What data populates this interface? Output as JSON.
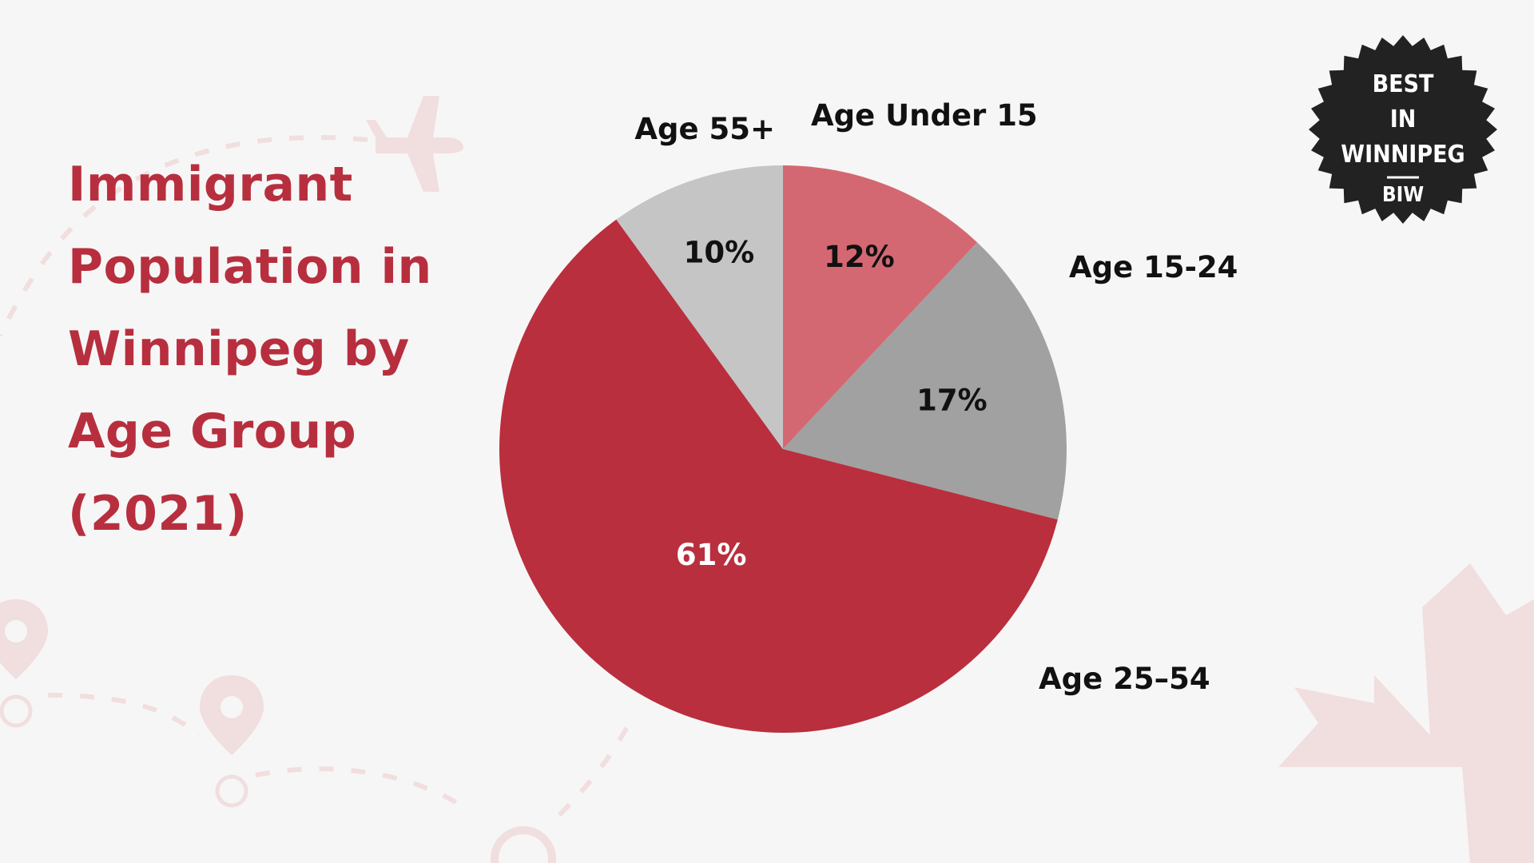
{
  "title_lines": [
    "Immigrant",
    "Population in",
    "Winnipeg by",
    "Age Group",
    "(2021)"
  ],
  "badge": {
    "line1": "BEST",
    "line2": "IN",
    "line3": "WINNIPEG",
    "line4": "BIW"
  },
  "colors": {
    "title": "#b72f3e",
    "background": "#f7f6f6",
    "decoration": "#f1dede",
    "badge": "#222222"
  },
  "chart_data": {
    "type": "pie",
    "title": "Immigrant Population in Winnipeg by Age Group (2021)",
    "start_angle_deg": 0,
    "direction": "clockwise",
    "slices": [
      {
        "label": "Age Under 15",
        "value": 12,
        "value_label": "12%",
        "color": "#d46872",
        "text_color": "#111111"
      },
      {
        "label": "Age 15-24",
        "value": 17,
        "value_label": "17%",
        "color": "#a0a1a0",
        "text_color": "#111111"
      },
      {
        "label": "Age 25–54",
        "value": 61,
        "value_label": "61%",
        "color": "#b92f3e",
        "text_color": "#ffffff"
      },
      {
        "label": "Age 55+",
        "value": 10,
        "value_label": "10%",
        "color": "#c5c5c5",
        "text_color": "#111111"
      }
    ]
  }
}
